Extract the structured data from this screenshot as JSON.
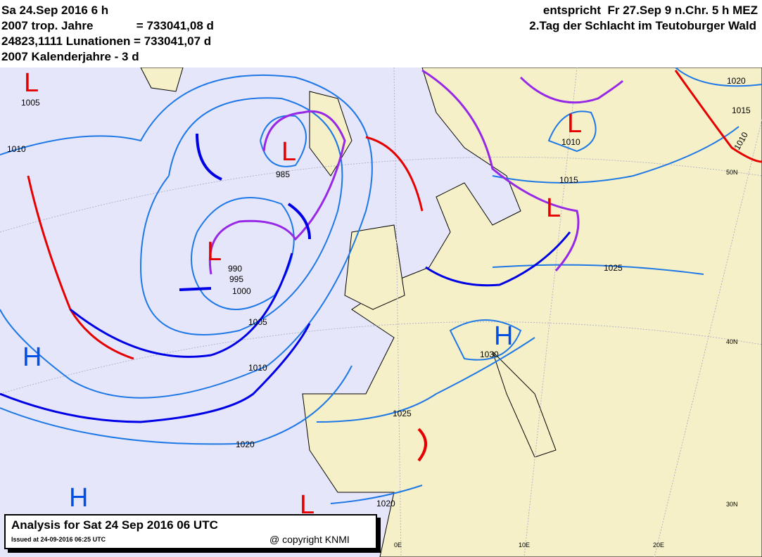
{
  "header": {
    "date_line": "Sa 24.Sep 2016 6 h",
    "trop_line": "2007 trop. Jahre             = 733041,08 d",
    "lunation_line": "24823,1111 Lunationen = 733041,07 d",
    "calendar_line": "2007 Kalenderjahre - 3 d",
    "equiv_line": "entspricht  Fr 27.Sep 9 n.Chr. 5 h MEZ",
    "event_line": "2.Tag der Schlacht im Teutoburger Wald"
  },
  "info_box": {
    "title": "Analysis for Sat 24 Sep 2016  06 UTC",
    "issued": "Issued at 24-09-2016  06:25 UTC",
    "copyright": "@ copyright KNMI"
  },
  "colors": {
    "sea": "#e6e6fa",
    "land": "#f5f0c8",
    "isobar": "#1e78e6",
    "cold_front": "#0000e6",
    "warm_front": "#e60000",
    "occlusion": "#9628e6",
    "high": "#0050e6",
    "low": "#e60000"
  },
  "pressure_systems": [
    {
      "type": "L",
      "label": "L"
    },
    {
      "type": "L",
      "label": "L"
    },
    {
      "type": "L",
      "label": "L"
    },
    {
      "type": "L",
      "label": "L"
    },
    {
      "type": "L",
      "label": "L"
    },
    {
      "type": "L",
      "label": "L"
    },
    {
      "type": "H",
      "label": "H"
    },
    {
      "type": "H",
      "label": "H"
    },
    {
      "type": "H",
      "label": "H"
    }
  ],
  "isobar_labels": [
    "1005",
    "1010",
    "985",
    "990",
    "995",
    "1000",
    "1005",
    "1010",
    "1020",
    "1025",
    "1020",
    "1030",
    "1025",
    "1015",
    "1010",
    "1020",
    "1015",
    "1010"
  ],
  "grid_labels": [
    "50N",
    "40N",
    "30N",
    "0E",
    "10E",
    "20E"
  ]
}
